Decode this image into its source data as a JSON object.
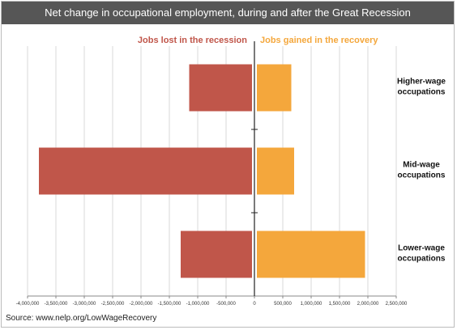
{
  "chart_data": {
    "type": "bar",
    "orientation": "horizontal",
    "title": "Net change in occupational employment, during and after the Great Recession",
    "categories": [
      "Higher-wage occupations",
      "Mid-wage occupations",
      "Lower-wage occupations"
    ],
    "category_lines": [
      [
        "Higher-wage",
        "occupations"
      ],
      [
        "Mid-wage",
        "occupations"
      ],
      [
        "Lower-wage",
        "occupations"
      ]
    ],
    "series": [
      {
        "name": "Jobs lost in the recession",
        "color": "#c0564a",
        "values": [
          -1150000,
          -3800000,
          -1300000
        ]
      },
      {
        "name": "Jobs gained in the recovery",
        "color": "#f4a73c",
        "values": [
          650000,
          700000,
          1950000
        ]
      }
    ],
    "xlim": [
      -4000000,
      2500000
    ],
    "xticks": [
      -4000000,
      -3500000,
      -3000000,
      -2500000,
      -2000000,
      -1500000,
      -1000000,
      -500000,
      0,
      500000,
      1000000,
      1500000,
      2000000,
      2500000
    ],
    "xtick_labels": [
      "-4,000,000",
      "-3,500,000",
      "-3,000,000",
      "-2,500,000",
      "-2,000,000",
      "-1,500,000",
      "-1,000,000",
      "-500,000",
      "0",
      "500,000",
      "1,000,000",
      "1,500,000",
      "2,000,000",
      "2,500,000"
    ],
    "grid": true,
    "legend_placement": "top"
  },
  "source": "Source: www.nelp.org/LowWageRecovery"
}
